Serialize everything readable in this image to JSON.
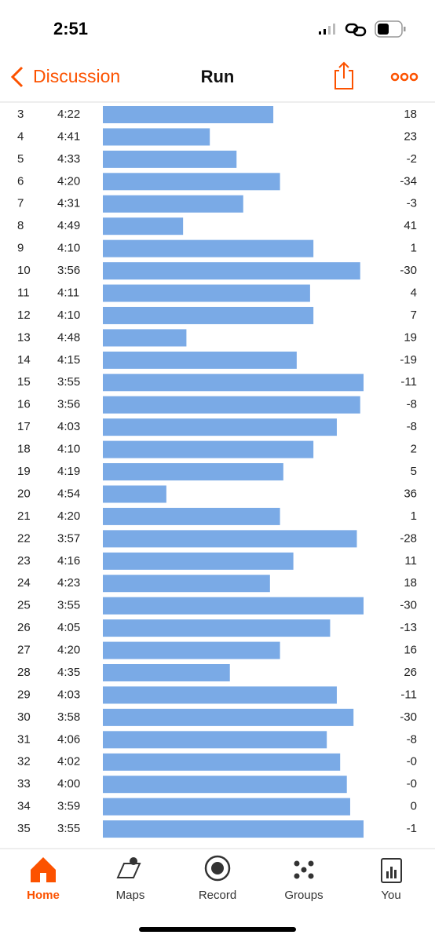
{
  "status_bar": {
    "time": "2:51"
  },
  "nav": {
    "back": "Discussion",
    "title": "Run"
  },
  "splits": {
    "xlim": [
      313,
      235
    ],
    "rows": [
      {
        "split": 3,
        "pace": 262,
        "pace_label": "4:22",
        "elev": 18
      },
      {
        "split": 4,
        "pace": 281,
        "pace_label": "4:41",
        "elev": 23
      },
      {
        "split": 5,
        "pace": 273,
        "pace_label": "4:33",
        "elev": -2
      },
      {
        "split": 6,
        "pace": 260,
        "pace_label": "4:20",
        "elev": -34
      },
      {
        "split": 7,
        "pace": 271,
        "pace_label": "4:31",
        "elev": -3
      },
      {
        "split": 8,
        "pace": 289,
        "pace_label": "4:49",
        "elev": 41
      },
      {
        "split": 9,
        "pace": 250,
        "pace_label": "4:10",
        "elev": 1
      },
      {
        "split": 10,
        "pace": 236,
        "pace_label": "3:56",
        "elev": -30
      },
      {
        "split": 11,
        "pace": 251,
        "pace_label": "4:11",
        "elev": 4
      },
      {
        "split": 12,
        "pace": 250,
        "pace_label": "4:10",
        "elev": 7
      },
      {
        "split": 13,
        "pace": 288,
        "pace_label": "4:48",
        "elev": 19
      },
      {
        "split": 14,
        "pace": 255,
        "pace_label": "4:15",
        "elev": -19
      },
      {
        "split": 15,
        "pace": 235,
        "pace_label": "3:55",
        "elev": -11
      },
      {
        "split": 16,
        "pace": 236,
        "pace_label": "3:56",
        "elev": -8
      },
      {
        "split": 17,
        "pace": 243,
        "pace_label": "4:03",
        "elev": -8
      },
      {
        "split": 18,
        "pace": 250,
        "pace_label": "4:10",
        "elev": 2
      },
      {
        "split": 19,
        "pace": 259,
        "pace_label": "4:19",
        "elev": 5
      },
      {
        "split": 20,
        "pace": 294,
        "pace_label": "4:54",
        "elev": 36
      },
      {
        "split": 21,
        "pace": 260,
        "pace_label": "4:20",
        "elev": 1
      },
      {
        "split": 22,
        "pace": 237,
        "pace_label": "3:57",
        "elev": -28
      },
      {
        "split": 23,
        "pace": 256,
        "pace_label": "4:16",
        "elev": 11
      },
      {
        "split": 24,
        "pace": 263,
        "pace_label": "4:23",
        "elev": 18
      },
      {
        "split": 25,
        "pace": 235,
        "pace_label": "3:55",
        "elev": -30
      },
      {
        "split": 26,
        "pace": 245,
        "pace_label": "4:05",
        "elev": -13
      },
      {
        "split": 27,
        "pace": 260,
        "pace_label": "4:20",
        "elev": 16
      },
      {
        "split": 28,
        "pace": 275,
        "pace_label": "4:35",
        "elev": 26
      },
      {
        "split": 29,
        "pace": 243,
        "pace_label": "4:03",
        "elev": -11
      },
      {
        "split": 30,
        "pace": 238,
        "pace_label": "3:58",
        "elev": -30
      },
      {
        "split": 31,
        "pace": 246,
        "pace_label": "4:06",
        "elev": -8
      },
      {
        "split": 32,
        "pace": 242,
        "pace_label": "4:02",
        "elev": 0,
        "elev_label": "-0"
      },
      {
        "split": 33,
        "pace": 240,
        "pace_label": "4:00",
        "elev": 0,
        "elev_label": "-0"
      },
      {
        "split": 34,
        "pace": 239,
        "pace_label": "3:59",
        "elev": 0
      },
      {
        "split": 35,
        "pace": 235,
        "pace_label": "3:55",
        "elev": -1
      }
    ]
  },
  "tabs": [
    "Home",
    "Maps",
    "Record",
    "Groups",
    "You"
  ]
}
